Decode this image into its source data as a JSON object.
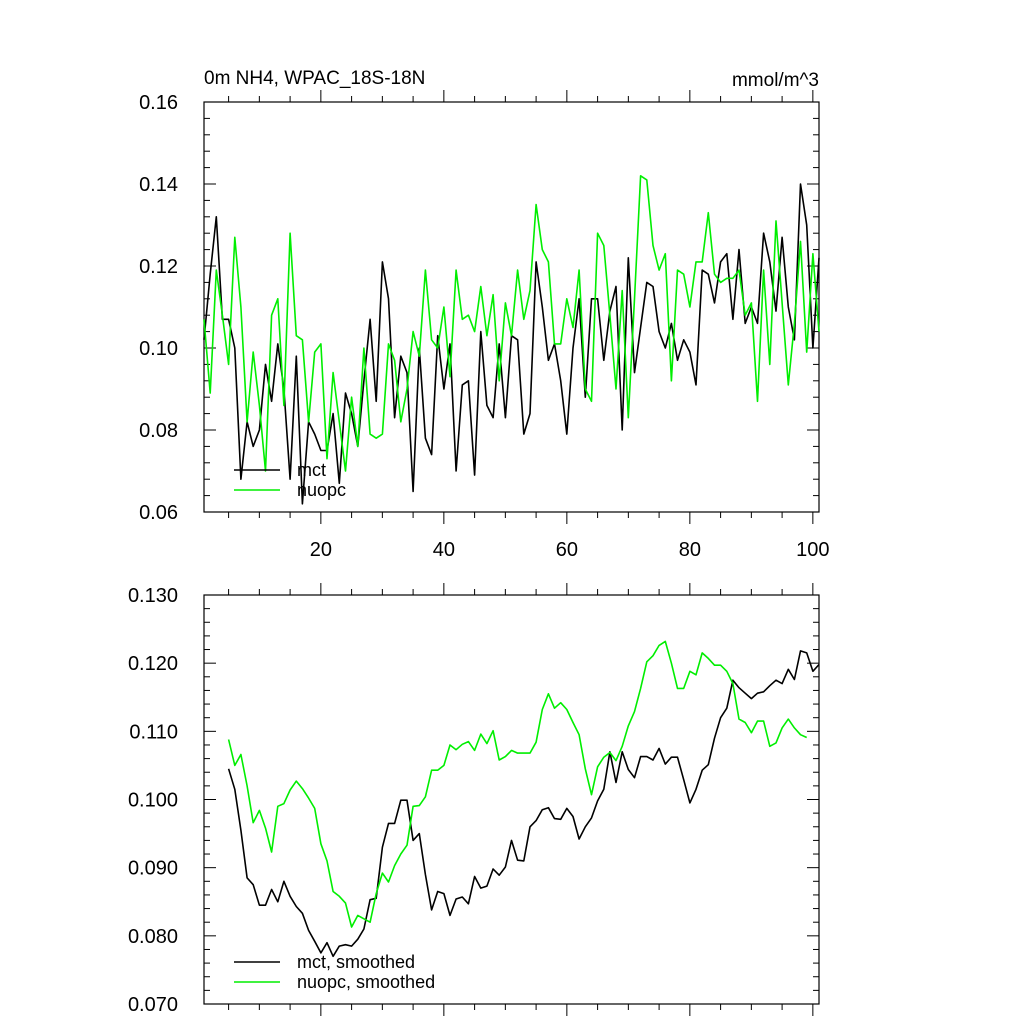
{
  "chart_data": [
    {
      "type": "line",
      "title_left": "0m NH4, WPAC_18S-18N",
      "title_right": "mmol/m^3",
      "xlim": [
        1,
        101
      ],
      "ylim": [
        0.06,
        0.16
      ],
      "xticks": [
        20,
        40,
        60,
        80,
        100
      ],
      "xtick_labels": [
        "20",
        "40",
        "60",
        "80",
        "100"
      ],
      "yticks": [
        0.06,
        0.08,
        0.1,
        0.12,
        0.14,
        0.16
      ],
      "ytick_labels": [
        "0.06",
        "0.08",
        "0.10",
        "0.12",
        "0.14",
        "0.16"
      ],
      "legend_position": "bottom-left",
      "series": [
        {
          "name": "mct",
          "color": "#000000",
          "values": [
            0.102,
            0.118,
            0.132,
            0.107,
            0.107,
            0.1,
            0.068,
            0.082,
            0.076,
            0.08,
            0.096,
            0.087,
            0.101,
            0.09,
            0.068,
            0.098,
            0.062,
            0.082,
            0.079,
            0.075,
            0.075,
            0.084,
            0.067,
            0.089,
            0.084,
            0.076,
            0.092,
            0.107,
            0.087,
            0.121,
            0.112,
            0.083,
            0.098,
            0.094,
            0.065,
            0.1,
            0.078,
            0.074,
            0.103,
            0.09,
            0.101,
            0.07,
            0.091,
            0.092,
            0.069,
            0.104,
            0.086,
            0.083,
            0.101,
            0.083,
            0.103,
            0.102,
            0.079,
            0.084,
            0.121,
            0.11,
            0.097,
            0.101,
            0.092,
            0.079,
            0.1,
            0.112,
            0.088,
            0.112,
            0.112,
            0.097,
            0.109,
            0.115,
            0.08,
            0.122,
            0.094,
            0.105,
            0.116,
            0.115,
            0.104,
            0.1,
            0.106,
            0.097,
            0.102,
            0.099,
            0.091,
            0.119,
            0.118,
            0.111,
            0.121,
            0.123,
            0.107,
            0.124,
            0.106,
            0.11,
            0.106,
            0.128,
            0.121,
            0.109,
            0.127,
            0.11,
            0.102,
            0.14,
            0.13,
            0.1,
            0.122
          ]
        },
        {
          "name": "nuopc",
          "color": "#00ee00",
          "values": [
            0.107,
            0.089,
            0.119,
            0.108,
            0.096,
            0.127,
            0.11,
            0.082,
            0.099,
            0.086,
            0.07,
            0.108,
            0.112,
            0.086,
            0.128,
            0.103,
            0.102,
            0.082,
            0.099,
            0.101,
            0.073,
            0.094,
            0.082,
            0.07,
            0.088,
            0.076,
            0.1,
            0.079,
            0.078,
            0.079,
            0.101,
            0.097,
            0.082,
            0.09,
            0.104,
            0.098,
            0.119,
            0.102,
            0.1,
            0.11,
            0.093,
            0.119,
            0.107,
            0.108,
            0.104,
            0.115,
            0.103,
            0.113,
            0.092,
            0.111,
            0.103,
            0.119,
            0.107,
            0.114,
            0.135,
            0.124,
            0.121,
            0.101,
            0.101,
            0.112,
            0.105,
            0.119,
            0.09,
            0.087,
            0.128,
            0.125,
            0.108,
            0.09,
            0.114,
            0.083,
            0.112,
            0.142,
            0.141,
            0.125,
            0.119,
            0.123,
            0.092,
            0.119,
            0.118,
            0.11,
            0.121,
            0.121,
            0.133,
            0.118,
            0.116,
            0.117,
            0.117,
            0.119,
            0.108,
            0.111,
            0.087,
            0.119,
            0.096,
            0.131,
            0.111,
            0.091,
            0.106,
            0.126,
            0.099,
            0.123,
            0.104
          ]
        }
      ]
    },
    {
      "type": "line",
      "title_left": "",
      "title_right": "",
      "xlim": [
        1,
        101
      ],
      "ylim": [
        0.07,
        0.13
      ],
      "xticks": [
        20,
        40,
        60,
        80,
        100
      ],
      "xtick_labels": [],
      "yticks": [
        0.07,
        0.08,
        0.09,
        0.1,
        0.11,
        0.12,
        0.13
      ],
      "ytick_labels": [
        "0.070",
        "0.080",
        "0.090",
        "0.100",
        "0.110",
        "0.120",
        "0.130"
      ],
      "legend_position": "bottom-left",
      "series": [
        {
          "name": "mct, smoothed",
          "color": "#000000",
          "x_start": 5,
          "values": [
            0.1045,
            0.1015,
            0.0955,
            0.0885,
            0.0875,
            0.0845,
            0.0845,
            0.0868,
            0.085,
            0.088,
            0.0858,
            0.0843,
            0.0833,
            0.0808,
            0.0792,
            0.0775,
            0.079,
            0.077,
            0.0785,
            0.0787,
            0.0785,
            0.0795,
            0.081,
            0.0853,
            0.0855,
            0.093,
            0.0965,
            0.0965,
            0.0999,
            0.0999,
            0.094,
            0.095,
            0.089,
            0.0838,
            0.0865,
            0.0862,
            0.083,
            0.0854,
            0.0857,
            0.0847,
            0.0887,
            0.087,
            0.0873,
            0.0898,
            0.0889,
            0.0901,
            0.094,
            0.0911,
            0.091,
            0.096,
            0.0969,
            0.0985,
            0.0988,
            0.0972,
            0.0971,
            0.0987,
            0.0975,
            0.0942,
            0.096,
            0.0973,
            0.0998,
            0.1015,
            0.107,
            0.1025,
            0.107,
            0.1044,
            0.1032,
            0.1063,
            0.1063,
            0.1058,
            0.1075,
            0.1052,
            0.1062,
            0.1062,
            0.1029,
            0.0995,
            0.1015,
            0.1043,
            0.1051,
            0.109,
            0.112,
            0.1134,
            0.1175,
            0.1164,
            0.1156,
            0.1148,
            0.1156,
            0.1158,
            0.1167,
            0.1175,
            0.117,
            0.1191,
            0.1176,
            0.1218,
            0.1215,
            0.1188,
            0.1198
          ]
        },
        {
          "name": "nuopc, smoothed",
          "color": "#00ee00",
          "x_start": 5,
          "values": [
            0.1088,
            0.105,
            0.1066,
            0.102,
            0.0966,
            0.0984,
            0.0958,
            0.0923,
            0.099,
            0.0994,
            0.1014,
            0.1027,
            0.1016,
            0.1002,
            0.0987,
            0.0935,
            0.091,
            0.0865,
            0.0858,
            0.0848,
            0.0813,
            0.083,
            0.0825,
            0.082,
            0.0862,
            0.0892,
            0.0879,
            0.0903,
            0.092,
            0.0933,
            0.099,
            0.0991,
            0.1004,
            0.1043,
            0.1043,
            0.105,
            0.108,
            0.1073,
            0.1081,
            0.1085,
            0.1072,
            0.1096,
            0.1082,
            0.1101,
            0.1058,
            0.1063,
            0.1072,
            0.1068,
            0.1068,
            0.1068,
            0.1084,
            0.1132,
            0.1155,
            0.1134,
            0.1142,
            0.1132,
            0.1113,
            0.1095,
            0.1045,
            0.1007,
            0.1048,
            0.1062,
            0.1069,
            0.1057,
            0.1078,
            0.1108,
            0.1129,
            0.1163,
            0.1202,
            0.1211,
            0.1226,
            0.1232,
            0.12,
            0.1163,
            0.1163,
            0.1188,
            0.1183,
            0.1215,
            0.1207,
            0.1197,
            0.1197,
            0.1188,
            0.117,
            0.1118,
            0.1113,
            0.1098,
            0.1115,
            0.1115,
            0.1078,
            0.1083,
            0.1105,
            0.1118,
            0.1105,
            0.1095,
            0.1091
          ]
        }
      ]
    }
  ]
}
